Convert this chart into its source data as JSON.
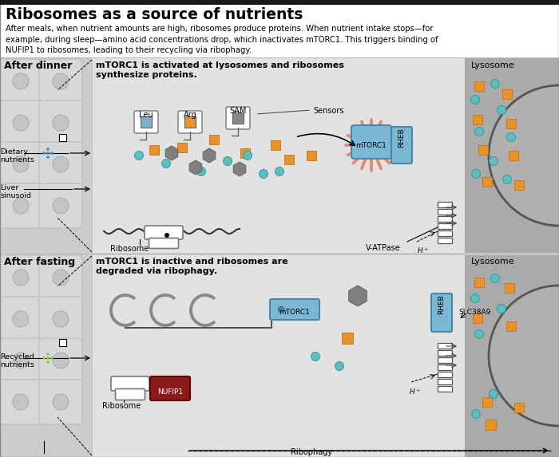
{
  "title": "Ribosomes as a source of nutrients",
  "subtitle": "After meals, when nutrient amounts are high, ribosomes produce proteins. When nutrient intake stops—for\nexample, during sleep—amino acid concentrations drop, which inactivates mTORC1. This triggers binding of\nNUFIP1 to ribosomes, leading to their recycling via ribophagy.",
  "top_bar_color": "#1a1a1a",
  "bg_color": "#ffffff",
  "panel_top_label": "After dinner",
  "panel_bottom_label": "After fasting",
  "panel_top_caption": "mTORC1 is activated at lysosomes and ribosomes\nsynthesize proteins.",
  "panel_bottom_caption": "mTORC1 is inactive and ribosomes are\ndegraded via ribophagy.",
  "lysosome_label": "Lysosome",
  "cell_bg": "#d0d0d0",
  "lysosome_bg": "#a8a8a8",
  "panel_bg": "#e0e0e0",
  "color_orange": "#e8922a",
  "color_teal": "#5bbfbf",
  "color_gray_dark": "#808080",
  "color_blue_light": "#7ab8d4",
  "color_red_dark": "#8b1a1a",
  "color_white": "#ffffff",
  "color_border": "#888888",
  "leu_fill": "#80b0c8",
  "arg_fill": "#e8922a",
  "sam_fill": "#888888"
}
